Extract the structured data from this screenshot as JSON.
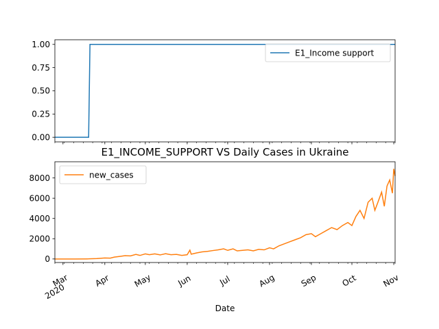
{
  "chart_data": [
    {
      "type": "line",
      "title": "",
      "xlabel": "",
      "ylabel": "",
      "ylim": [
        -0.05,
        1.05
      ],
      "yticks": [
        "0.00",
        "0.25",
        "0.50",
        "0.75",
        "1.00"
      ],
      "ytick_values": [
        0,
        0.25,
        0.5,
        0.75,
        1.0
      ],
      "legend": "top-right",
      "grid": false,
      "series": [
        {
          "name": "E1_Income support",
          "color": "#1f77b4",
          "points": [
            [
              "2020-02-24",
              0
            ],
            [
              "2020-03-20",
              0
            ],
            [
              "2020-03-21",
              1
            ],
            [
              "2020-11-02",
              1
            ]
          ]
        }
      ]
    },
    {
      "type": "line",
      "title": "E1_INCOME_SUPPORT VS Daily Cases in Ukraine",
      "xlabel": "Date",
      "ylabel": "",
      "ylim": [
        -350,
        9600
      ],
      "yticks": [
        "0",
        "2000",
        "4000",
        "6000",
        "8000"
      ],
      "ytick_values": [
        0,
        2000,
        4000,
        6000,
        8000
      ],
      "legend": "top-left",
      "grid": false,
      "x_ticks": [
        {
          "date": "2020-03-01",
          "label": "Mar",
          "sublabel": "2020"
        },
        {
          "date": "2020-04-01",
          "label": "Apr"
        },
        {
          "date": "2020-05-01",
          "label": "May"
        },
        {
          "date": "2020-06-01",
          "label": "Jun"
        },
        {
          "date": "2020-07-01",
          "label": "Jul"
        },
        {
          "date": "2020-08-01",
          "label": "Aug"
        },
        {
          "date": "2020-09-01",
          "label": "Sep"
        },
        {
          "date": "2020-10-01",
          "label": "Oct"
        },
        {
          "date": "2020-11-01",
          "label": "Nov"
        }
      ],
      "series": [
        {
          "name": "new_cases",
          "color": "#ff7f0e",
          "points": [
            [
              "2020-02-24",
              0
            ],
            [
              "2020-03-10",
              0
            ],
            [
              "2020-03-20",
              10
            ],
            [
              "2020-03-26",
              40
            ],
            [
              "2020-04-01",
              100
            ],
            [
              "2020-04-05",
              80
            ],
            [
              "2020-04-08",
              180
            ],
            [
              "2020-04-12",
              250
            ],
            [
              "2020-04-16",
              330
            ],
            [
              "2020-04-20",
              300
            ],
            [
              "2020-04-24",
              450
            ],
            [
              "2020-04-27",
              350
            ],
            [
              "2020-05-01",
              500
            ],
            [
              "2020-05-04",
              420
            ],
            [
              "2020-05-08",
              500
            ],
            [
              "2020-05-12",
              400
            ],
            [
              "2020-05-16",
              520
            ],
            [
              "2020-05-20",
              420
            ],
            [
              "2020-05-24",
              450
            ],
            [
              "2020-05-28",
              350
            ],
            [
              "2020-06-01",
              420
            ],
            [
              "2020-06-03",
              870
            ],
            [
              "2020-06-04",
              470
            ],
            [
              "2020-06-08",
              600
            ],
            [
              "2020-06-12",
              700
            ],
            [
              "2020-06-16",
              750
            ],
            [
              "2020-06-20",
              830
            ],
            [
              "2020-06-24",
              900
            ],
            [
              "2020-06-28",
              1000
            ],
            [
              "2020-07-01",
              850
            ],
            [
              "2020-07-05",
              1000
            ],
            [
              "2020-07-08",
              800
            ],
            [
              "2020-07-12",
              850
            ],
            [
              "2020-07-16",
              900
            ],
            [
              "2020-07-20",
              800
            ],
            [
              "2020-07-24",
              950
            ],
            [
              "2020-07-28",
              900
            ],
            [
              "2020-08-01",
              1100
            ],
            [
              "2020-08-04",
              1000
            ],
            [
              "2020-08-08",
              1300
            ],
            [
              "2020-08-12",
              1500
            ],
            [
              "2020-08-16",
              1700
            ],
            [
              "2020-08-20",
              1900
            ],
            [
              "2020-08-24",
              2100
            ],
            [
              "2020-08-28",
              2400
            ],
            [
              "2020-09-01",
              2500
            ],
            [
              "2020-09-04",
              2200
            ],
            [
              "2020-09-08",
              2500
            ],
            [
              "2020-09-12",
              2800
            ],
            [
              "2020-09-16",
              3100
            ],
            [
              "2020-09-20",
              2900
            ],
            [
              "2020-09-24",
              3300
            ],
            [
              "2020-09-28",
              3600
            ],
            [
              "2020-10-01",
              3300
            ],
            [
              "2020-10-04",
              4200
            ],
            [
              "2020-10-07",
              4800
            ],
            [
              "2020-10-10",
              4000
            ],
            [
              "2020-10-13",
              5600
            ],
            [
              "2020-10-16",
              6000
            ],
            [
              "2020-10-18",
              4800
            ],
            [
              "2020-10-20",
              5500
            ],
            [
              "2020-10-23",
              6600
            ],
            [
              "2020-10-25",
              5200
            ],
            [
              "2020-10-27",
              7200
            ],
            [
              "2020-10-29",
              7800
            ],
            [
              "2020-10-31",
              6500
            ],
            [
              "2020-11-01",
              8900
            ],
            [
              "2020-11-02",
              8200
            ]
          ]
        }
      ]
    }
  ]
}
